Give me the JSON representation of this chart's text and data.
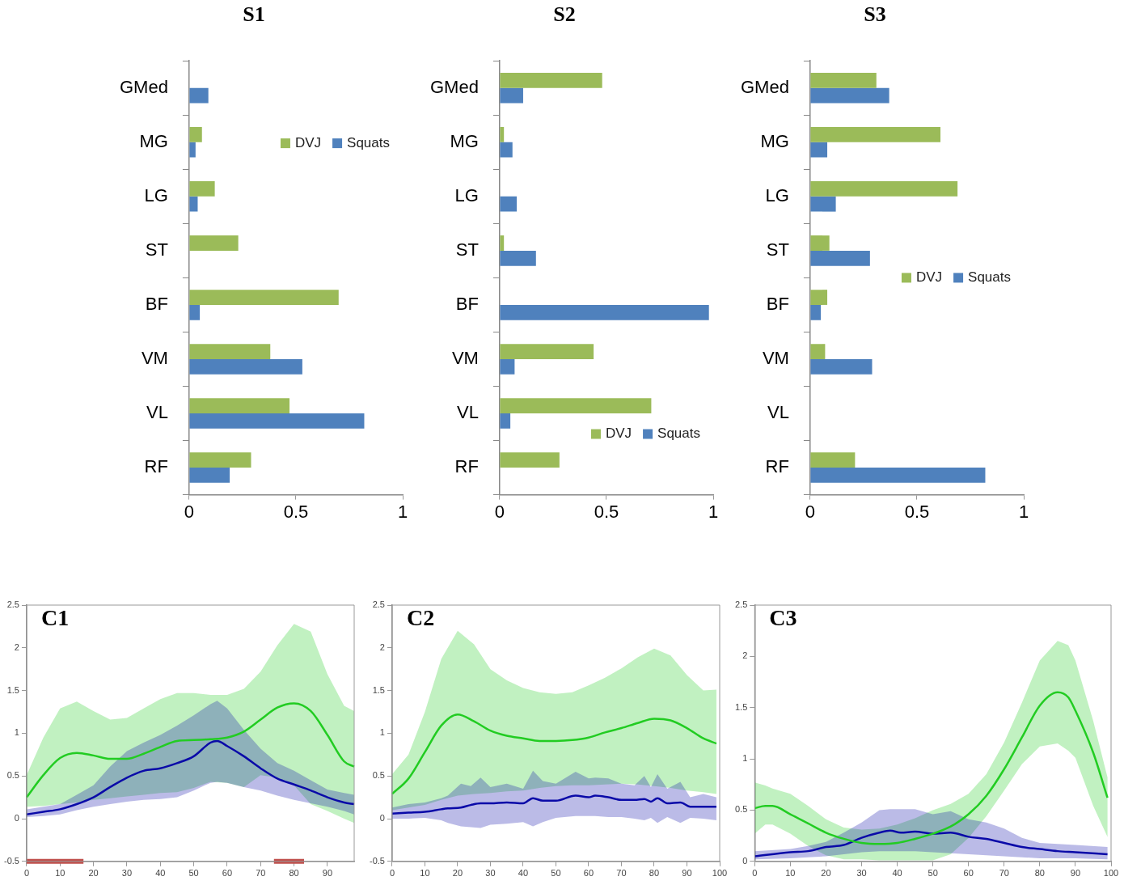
{
  "chart_data": [
    {
      "type": "bar",
      "title": "S1",
      "orientation": "horizontal",
      "categories": [
        "GMed",
        "MG",
        "LG",
        "ST",
        "BF",
        "VM",
        "VL",
        "RF"
      ],
      "xlim": [
        0,
        1
      ],
      "xticks": [
        0,
        0.5,
        1
      ],
      "grid": false,
      "legend": "top right",
      "series": [
        {
          "name": "DVJ",
          "color": "#9bbb59",
          "values": [
            0,
            0.06,
            0.12,
            0.23,
            0.7,
            0.38,
            0.47,
            0.29
          ]
        },
        {
          "name": "Squats",
          "color": "#4f81bd",
          "values": [
            0.09,
            0.03,
            0.04,
            0,
            0.05,
            0.53,
            0.82,
            0.19
          ]
        }
      ]
    },
    {
      "type": "bar",
      "title": "S2",
      "orientation": "horizontal",
      "categories": [
        "GMed",
        "MG",
        "LG",
        "ST",
        "BF",
        "VM",
        "VL",
        "RF"
      ],
      "xlim": [
        0,
        1
      ],
      "xticks": [
        0,
        0.5,
        1
      ],
      "grid": false,
      "legend": "bottom right",
      "series": [
        {
          "name": "DVJ",
          "color": "#9bbb59",
          "values": [
            0.48,
            0.02,
            0,
            0.02,
            0,
            0.44,
            0.71,
            0.28
          ]
        },
        {
          "name": "Squats",
          "color": "#4f81bd",
          "values": [
            0.11,
            0.06,
            0.08,
            0.17,
            0.98,
            0.07,
            0.05,
            0
          ]
        }
      ]
    },
    {
      "type": "bar",
      "title": "S3",
      "orientation": "horizontal",
      "categories": [
        "GMed",
        "MG",
        "LG",
        "ST",
        "BF",
        "VM",
        "VL",
        "RF"
      ],
      "xlim": [
        0,
        1
      ],
      "xticks": [
        0,
        0.5,
        1
      ],
      "grid": false,
      "legend": "right",
      "series": [
        {
          "name": "DVJ",
          "color": "#9bbb59",
          "values": [
            0.31,
            0.61,
            0.69,
            0.09,
            0.08,
            0.07,
            0,
            0.21
          ]
        },
        {
          "name": "Squats",
          "color": "#4f81bd",
          "values": [
            0.37,
            0.08,
            0.12,
            0.28,
            0.05,
            0.29,
            0,
            0.82
          ]
        }
      ]
    },
    {
      "type": "line",
      "title": "C1",
      "xlim": [
        0,
        98
      ],
      "xticks": [
        0,
        10,
        20,
        30,
        40,
        50,
        60,
        70,
        80,
        90
      ],
      "ylim": [
        -0.5,
        2.5
      ],
      "yticks": [
        -0.5,
        0,
        0.5,
        1,
        1.5,
        2,
        2.5
      ],
      "grid": false,
      "legend": false,
      "marker": "none",
      "line_style": "solid",
      "series": [
        {
          "color": "#c0504d",
          "x": [
            0,
            17,
            45,
            74,
            83
          ],
          "values": [
            -0.5,
            -0.5,
            null,
            -0.5,
            -0.5
          ]
        },
        {
          "color": "#22cc22",
          "x": [
            0,
            5,
            10,
            15,
            20,
            25,
            30,
            35,
            40,
            45,
            50,
            55,
            60,
            65,
            70,
            75,
            80,
            85,
            90,
            95,
            98
          ],
          "values": [
            0.25,
            0.51,
            0.71,
            0.77,
            0.74,
            0.7,
            0.7,
            0.76,
            0.84,
            0.91,
            0.92,
            0.93,
            0.95,
            1.02,
            1.16,
            1.3,
            1.35,
            1.26,
            0.98,
            0.67,
            0.61
          ],
          "upper": [
            0.51,
            0.95,
            1.29,
            1.37,
            1.26,
            1.16,
            1.18,
            1.29,
            1.4,
            1.47,
            1.47,
            1.45,
            1.45,
            1.52,
            1.72,
            2.03,
            2.28,
            2.19,
            1.69,
            1.32,
            1.26
          ],
          "lower": [
            0.14,
            0.15,
            0.17,
            0.19,
            0.22,
            0.24,
            0.26,
            0.28,
            0.3,
            0.31,
            0.36,
            0.43,
            0.42,
            0.37,
            0.51,
            0.48,
            0.39,
            0.17,
            0.09,
            0.0,
            -0.05
          ]
        },
        {
          "color": "#0a0aa8",
          "x": [
            0,
            5,
            10,
            15,
            20,
            25,
            30,
            35,
            40,
            45,
            50,
            55,
            57,
            60,
            65,
            70,
            75,
            80,
            85,
            90,
            95,
            98
          ],
          "values": [
            0.05,
            0.08,
            0.11,
            0.17,
            0.25,
            0.37,
            0.48,
            0.56,
            0.59,
            0.65,
            0.73,
            0.89,
            0.91,
            0.85,
            0.73,
            0.59,
            0.47,
            0.4,
            0.33,
            0.25,
            0.19,
            0.17
          ],
          "upper": [
            0.11,
            0.14,
            0.17,
            0.28,
            0.39,
            0.61,
            0.79,
            0.89,
            0.98,
            1.09,
            1.21,
            1.34,
            1.38,
            1.29,
            1.04,
            0.82,
            0.65,
            0.56,
            0.45,
            0.34,
            0.3,
            0.28
          ],
          "lower": [
            0.02,
            0.03,
            0.05,
            0.1,
            0.14,
            0.17,
            0.2,
            0.22,
            0.23,
            0.25,
            0.33,
            0.42,
            0.43,
            0.42,
            0.37,
            0.33,
            0.27,
            0.22,
            0.18,
            0.14,
            0.09,
            0.05
          ]
        }
      ]
    },
    {
      "type": "line",
      "title": "C2",
      "xlim": [
        0,
        100
      ],
      "xticks": [
        0,
        10,
        20,
        30,
        40,
        50,
        60,
        70,
        80,
        90,
        100
      ],
      "ylim": [
        -0.5,
        2.5
      ],
      "yticks": [
        -0.5,
        0,
        0.5,
        1,
        1.5,
        2,
        2.5
      ],
      "grid": false,
      "legend": false,
      "marker": "none",
      "line_style": "solid",
      "series": [
        {
          "color": "#22cc22",
          "x": [
            0,
            5,
            10,
            15,
            20,
            25,
            30,
            35,
            40,
            45,
            50,
            55,
            60,
            65,
            70,
            75,
            80,
            85,
            90,
            95,
            99
          ],
          "values": [
            0.29,
            0.47,
            0.78,
            1.09,
            1.22,
            1.14,
            1.03,
            0.97,
            0.94,
            0.91,
            0.91,
            0.92,
            0.95,
            1.01,
            1.06,
            1.12,
            1.17,
            1.15,
            1.06,
            0.94,
            0.88
          ],
          "upper": [
            0.52,
            0.75,
            1.25,
            1.87,
            2.2,
            2.04,
            1.75,
            1.62,
            1.53,
            1.48,
            1.46,
            1.48,
            1.56,
            1.65,
            1.76,
            1.89,
            1.99,
            1.91,
            1.68,
            1.5,
            1.51
          ],
          "lower": [
            0.1,
            0.13,
            0.16,
            0.22,
            0.27,
            0.29,
            0.3,
            0.32,
            0.33,
            0.36,
            0.38,
            0.39,
            0.39,
            0.4,
            0.41,
            0.4,
            0.38,
            0.36,
            0.33,
            0.31,
            0.29
          ]
        },
        {
          "color": "#0a0aa8",
          "x": [
            0,
            5,
            10,
            15,
            17,
            21,
            24,
            27,
            30,
            35,
            40,
            43,
            46,
            50,
            56,
            60,
            62,
            66,
            70,
            74,
            77,
            79,
            81,
            84,
            88,
            91,
            95,
            99
          ],
          "values": [
            0.06,
            0.07,
            0.08,
            0.11,
            0.12,
            0.13,
            0.16,
            0.18,
            0.18,
            0.19,
            0.18,
            0.24,
            0.21,
            0.21,
            0.27,
            0.25,
            0.27,
            0.25,
            0.22,
            0.22,
            0.23,
            0.2,
            0.24,
            0.18,
            0.19,
            0.14,
            0.14,
            0.14
          ],
          "upper": [
            0.13,
            0.17,
            0.19,
            0.24,
            0.27,
            0.41,
            0.38,
            0.48,
            0.37,
            0.41,
            0.35,
            0.56,
            0.44,
            0.41,
            0.55,
            0.47,
            0.48,
            0.47,
            0.41,
            0.39,
            0.5,
            0.37,
            0.52,
            0.35,
            0.43,
            0.25,
            0.29,
            0.25
          ],
          "lower": [
            0.0,
            0.0,
            0.01,
            -0.02,
            -0.05,
            -0.09,
            -0.1,
            -0.11,
            -0.07,
            -0.06,
            -0.04,
            -0.09,
            -0.04,
            0.01,
            0.03,
            0.03,
            0.03,
            0.02,
            0.02,
            0.0,
            -0.02,
            0.01,
            -0.05,
            0.02,
            -0.05,
            0.01,
            0.0,
            -0.02
          ]
        }
      ]
    },
    {
      "type": "line",
      "title": "C3",
      "xlim": [
        0,
        100
      ],
      "xticks": [
        0,
        10,
        20,
        30,
        40,
        50,
        60,
        70,
        80,
        90,
        100
      ],
      "ylim": [
        0,
        2.5
      ],
      "yticks": [
        0,
        0.5,
        1,
        1.5,
        2,
        2.5
      ],
      "grid": false,
      "legend": false,
      "marker": "none",
      "line_style": "solid",
      "series": [
        {
          "color": "#22cc22",
          "x": [
            0,
            3,
            5,
            10,
            15,
            20,
            25,
            30,
            35,
            40,
            45,
            50,
            55,
            60,
            65,
            70,
            75,
            80,
            85,
            88,
            90,
            95,
            99
          ],
          "values": [
            0.52,
            0.54,
            0.54,
            0.46,
            0.37,
            0.28,
            0.22,
            0.18,
            0.17,
            0.18,
            0.22,
            0.27,
            0.34,
            0.46,
            0.64,
            0.9,
            1.21,
            1.52,
            1.65,
            1.6,
            1.47,
            1.06,
            0.62
          ],
          "upper": [
            0.77,
            0.74,
            0.71,
            0.66,
            0.54,
            0.41,
            0.33,
            0.31,
            0.32,
            0.36,
            0.42,
            0.5,
            0.56,
            0.66,
            0.85,
            1.16,
            1.55,
            1.96,
            2.15,
            2.11,
            1.96,
            1.37,
            0.82
          ],
          "lower": [
            0.27,
            0.36,
            0.36,
            0.27,
            0.15,
            0.06,
            0.02,
            0.02,
            0.01,
            0.01,
            0.01,
            0.01,
            0.07,
            0.23,
            0.44,
            0.69,
            0.95,
            1.12,
            1.15,
            1.08,
            1.01,
            0.54,
            0.24
          ]
        },
        {
          "color": "#0a0aa8",
          "x": [
            0,
            10,
            15,
            20,
            25,
            30,
            35,
            38,
            41,
            45,
            50,
            55,
            60,
            65,
            70,
            75,
            80,
            85,
            90,
            99
          ],
          "values": [
            0.05,
            0.09,
            0.1,
            0.14,
            0.16,
            0.23,
            0.28,
            0.3,
            0.28,
            0.29,
            0.27,
            0.28,
            0.24,
            0.22,
            0.18,
            0.14,
            0.12,
            0.1,
            0.09,
            0.07
          ],
          "upper": [
            0.1,
            0.12,
            0.15,
            0.19,
            0.28,
            0.38,
            0.5,
            0.51,
            0.51,
            0.51,
            0.46,
            0.49,
            0.41,
            0.38,
            0.32,
            0.23,
            0.18,
            0.17,
            0.16,
            0.14
          ],
          "lower": [
            0.02,
            0.03,
            0.04,
            0.05,
            0.07,
            0.09,
            0.1,
            0.1,
            0.1,
            0.1,
            0.09,
            0.08,
            0.07,
            0.06,
            0.05,
            0.04,
            0.03,
            0.03,
            0.03,
            0.02
          ]
        }
      ]
    }
  ]
}
